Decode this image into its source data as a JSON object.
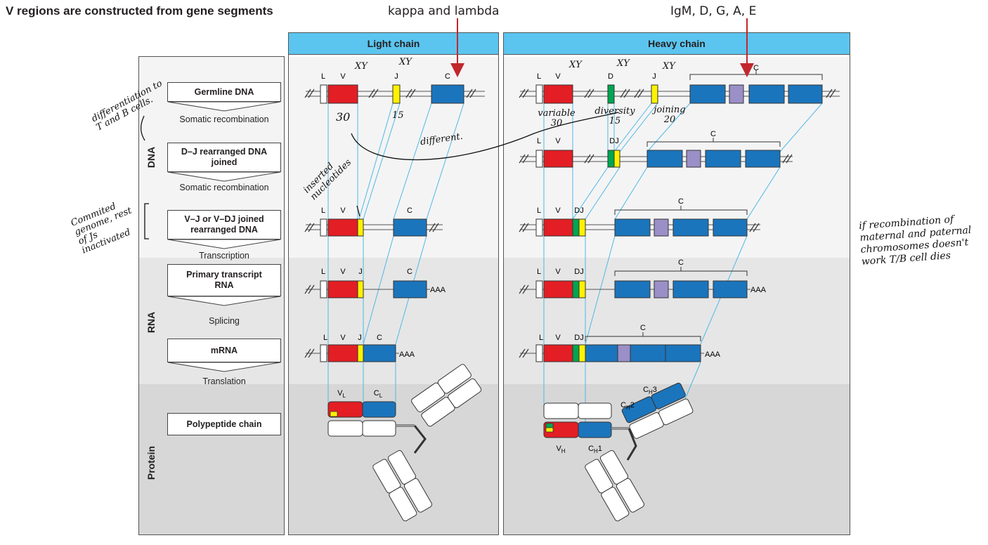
{
  "title": "V regions are constructed from gene segments",
  "top_annotations": {
    "light": "kappa and lambda",
    "heavy": "IgM, D, G, A, E"
  },
  "headers": {
    "light": "Light chain",
    "heavy": "Heavy chain"
  },
  "sections": {
    "dna": "DNA",
    "rna": "RNA",
    "protein": "Protein"
  },
  "stages": {
    "germline": "Germline DNA",
    "dj": "D–J rearranged DNA joined",
    "vj": "V–J or V–DJ joined rearranged DNA",
    "primary": "Primary transcript RNA",
    "mrna": "mRNA",
    "polypeptide": "Polypeptide chain"
  },
  "steps": {
    "somatic1": "Somatic recombination",
    "somatic2": "Somatic recombination",
    "transcription": "Transcription",
    "splicing": "Splicing",
    "translation": "Translation"
  },
  "segment_labels": {
    "L": "L",
    "V": "V",
    "D": "D",
    "J": "J",
    "C": "C",
    "DJ": "DJ",
    "polyA": "AAA",
    "VL": "V",
    "VL_sub": "L",
    "CL": "C",
    "CL_sub": "L",
    "VH": "V",
    "VH_sub": "H",
    "CH1": "C",
    "CH1_sub": "H",
    "CH1_n": "1",
    "CH2": "C",
    "CH2_sub": "H",
    "CH2_n": "2",
    "CH3": "C",
    "CH3_sub": "H",
    "CH3_n": "3"
  },
  "handwritten": {
    "differentiation": "differentiation to T and B cells.",
    "commited": "Commited genome, rest of Js inactivated",
    "inserted": "inserted nucleotides",
    "xy_v_light": "XY",
    "xy_j_light": "XY",
    "count_v_light": "30",
    "count_j_light": "15",
    "different": "different.",
    "xy_v_heavy": "XY",
    "xy_d_heavy": "XY",
    "xy_j_heavy": "XY",
    "variable": "variable",
    "variable_n": "30",
    "diversity": "diversity",
    "diversity_n": "15",
    "joining": "joining",
    "joining_n": "20",
    "side_note": "if recombination of maternal and paternal chromosomes doesn't work T/B cell dies"
  },
  "colors": {
    "V": "#e31e24",
    "J": "#fff200",
    "D": "#00a651",
    "C": "#1b75bc",
    "C_alt": "#9b8fc7",
    "header": "#5bc5ef",
    "arrow": "#c1272d",
    "guide": "#4fb8e6"
  }
}
